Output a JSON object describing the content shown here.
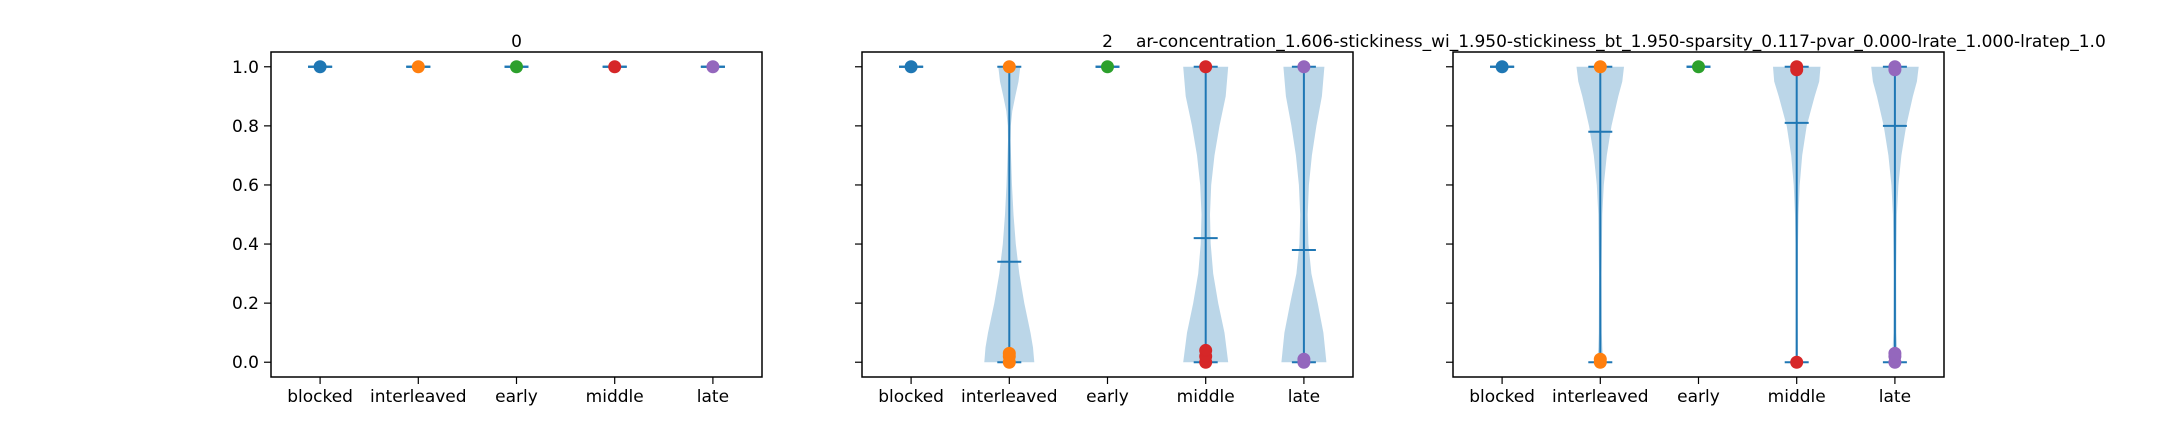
{
  "figure": {
    "header_text": "ar-concentration_1.606-stickiness_wi_1.950-stickiness_bt_1.950-sparsity_0.117-pvar_0.000-lrate_1.000-lratep_1.0"
  },
  "chart_data": [
    {
      "type": "violin",
      "title": "0",
      "categories": [
        "blocked",
        "interleaved",
        "early",
        "middle",
        "late"
      ],
      "ylim": [
        -0.05,
        1.05
      ],
      "yticks": [
        "0.0",
        "0.2",
        "0.4",
        "0.6",
        "0.8",
        "1.0"
      ],
      "series": [
        {
          "category": "blocked",
          "color": "#1f77b4",
          "mean": 1.0,
          "min": 1.0,
          "max": 1.0,
          "points": [
            1.0
          ],
          "density": []
        },
        {
          "category": "interleaved",
          "color": "#ff7f0e",
          "mean": 1.0,
          "min": 1.0,
          "max": 1.0,
          "points": [
            1.0
          ],
          "density": []
        },
        {
          "category": "early",
          "color": "#2ca02c",
          "mean": 1.0,
          "min": 1.0,
          "max": 1.0,
          "points": [
            1.0
          ],
          "density": []
        },
        {
          "category": "middle",
          "color": "#d62728",
          "mean": 1.0,
          "min": 1.0,
          "max": 1.0,
          "points": [
            1.0
          ],
          "density": []
        },
        {
          "category": "late",
          "color": "#9467bd",
          "mean": 1.0,
          "min": 1.0,
          "max": 1.0,
          "points": [
            1.0
          ],
          "density": []
        }
      ]
    },
    {
      "type": "violin",
      "title": "2",
      "categories": [
        "blocked",
        "interleaved",
        "early",
        "middle",
        "late"
      ],
      "ylim": [
        -0.05,
        1.05
      ],
      "yticks": [
        "0.0",
        "0.2",
        "0.4",
        "0.6",
        "0.8",
        "1.0"
      ],
      "series": [
        {
          "category": "blocked",
          "color": "#1f77b4",
          "mean": 1.0,
          "min": 1.0,
          "max": 1.0,
          "points": [
            1.0
          ],
          "density": []
        },
        {
          "category": "interleaved",
          "color": "#ff7f0e",
          "mean": 0.34,
          "min": 0.0,
          "max": 1.0,
          "points": [
            1.0,
            0.0,
            0.02,
            0.03
          ],
          "density": [
            [
              0.0,
              1.0
            ],
            [
              0.05,
              0.95
            ],
            [
              0.1,
              0.85
            ],
            [
              0.2,
              0.6
            ],
            [
              0.3,
              0.4
            ],
            [
              0.4,
              0.26
            ],
            [
              0.5,
              0.17
            ],
            [
              0.6,
              0.11
            ],
            [
              0.7,
              0.07
            ],
            [
              0.75,
              0.05
            ],
            [
              0.8,
              0.06
            ],
            [
              0.85,
              0.12
            ],
            [
              0.9,
              0.24
            ],
            [
              0.95,
              0.37
            ],
            [
              1.0,
              0.44
            ]
          ]
        },
        {
          "category": "early",
          "color": "#2ca02c",
          "mean": 1.0,
          "min": 1.0,
          "max": 1.0,
          "points": [
            1.0
          ],
          "density": []
        },
        {
          "category": "middle",
          "color": "#d62728",
          "mean": 0.42,
          "min": 0.0,
          "max": 1.0,
          "points": [
            1.0,
            0.0,
            0.02,
            0.04
          ],
          "density": [
            [
              0.0,
              0.9
            ],
            [
              0.1,
              0.75
            ],
            [
              0.2,
              0.5
            ],
            [
              0.3,
              0.3
            ],
            [
              0.4,
              0.2
            ],
            [
              0.5,
              0.17
            ],
            [
              0.6,
              0.22
            ],
            [
              0.7,
              0.35
            ],
            [
              0.8,
              0.55
            ],
            [
              0.9,
              0.8
            ],
            [
              1.0,
              0.9
            ]
          ]
        },
        {
          "category": "late",
          "color": "#9467bd",
          "mean": 0.38,
          "min": 0.0,
          "max": 1.0,
          "points": [
            1.0,
            0.0,
            0.01
          ],
          "density": [
            [
              0.0,
              0.9
            ],
            [
              0.1,
              0.78
            ],
            [
              0.2,
              0.55
            ],
            [
              0.3,
              0.3
            ],
            [
              0.4,
              0.18
            ],
            [
              0.5,
              0.15
            ],
            [
              0.6,
              0.2
            ],
            [
              0.7,
              0.32
            ],
            [
              0.8,
              0.5
            ],
            [
              0.9,
              0.72
            ],
            [
              1.0,
              0.82
            ]
          ]
        }
      ]
    },
    {
      "type": "violin",
      "title": "",
      "categories": [
        "blocked",
        "interleaved",
        "early",
        "middle",
        "late"
      ],
      "ylim": [
        -0.05,
        1.05
      ],
      "yticks": [
        "0.0",
        "0.2",
        "0.4",
        "0.6",
        "0.8",
        "1.0"
      ],
      "series": [
        {
          "category": "blocked",
          "color": "#1f77b4",
          "mean": 1.0,
          "min": 1.0,
          "max": 1.0,
          "points": [
            1.0
          ],
          "density": []
        },
        {
          "category": "interleaved",
          "color": "#ff7f0e",
          "mean": 0.78,
          "min": 0.0,
          "max": 1.0,
          "points": [
            1.0,
            0.0,
            0.01
          ],
          "density": [
            [
              0.0,
              0.12
            ],
            [
              0.05,
              0.08
            ],
            [
              0.1,
              0.06
            ],
            [
              0.3,
              0.05
            ],
            [
              0.5,
              0.08
            ],
            [
              0.6,
              0.14
            ],
            [
              0.7,
              0.26
            ],
            [
              0.8,
              0.45
            ],
            [
              0.9,
              0.72
            ],
            [
              0.95,
              0.88
            ],
            [
              1.0,
              0.95
            ]
          ]
        },
        {
          "category": "early",
          "color": "#2ca02c",
          "mean": 1.0,
          "min": 1.0,
          "max": 1.0,
          "points": [
            1.0
          ],
          "density": []
        },
        {
          "category": "middle",
          "color": "#d62728",
          "mean": 0.81,
          "min": 0.0,
          "max": 1.0,
          "points": [
            1.0,
            0.99,
            0.0
          ],
          "density": [
            [
              0.0,
              0.05
            ],
            [
              0.2,
              0.04
            ],
            [
              0.4,
              0.05
            ],
            [
              0.5,
              0.07
            ],
            [
              0.6,
              0.12
            ],
            [
              0.7,
              0.22
            ],
            [
              0.8,
              0.4
            ],
            [
              0.9,
              0.72
            ],
            [
              0.95,
              0.9
            ],
            [
              1.0,
              0.95
            ]
          ]
        },
        {
          "category": "late",
          "color": "#9467bd",
          "mean": 0.8,
          "min": 0.0,
          "max": 1.0,
          "points": [
            1.0,
            0.99,
            0.0,
            0.02,
            0.03
          ],
          "density": [
            [
              0.0,
              0.15
            ],
            [
              0.03,
              0.1
            ],
            [
              0.1,
              0.06
            ],
            [
              0.3,
              0.05
            ],
            [
              0.5,
              0.08
            ],
            [
              0.6,
              0.14
            ],
            [
              0.7,
              0.26
            ],
            [
              0.8,
              0.45
            ],
            [
              0.9,
              0.72
            ],
            [
              0.95,
              0.88
            ],
            [
              1.0,
              0.95
            ]
          ]
        }
      ]
    }
  ]
}
